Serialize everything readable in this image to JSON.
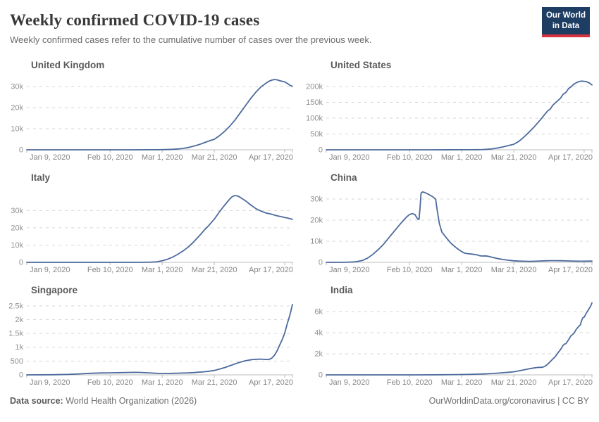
{
  "header": {
    "title": "Weekly confirmed COVID-19 cases",
    "subtitle": "Weekly confirmed cases refer to the cumulative number of cases over the previous week.",
    "logo_line1": "Our World",
    "logo_line2": "in Data"
  },
  "footer": {
    "source_label": "Data source:",
    "source_text": " World Health Organization (2026)",
    "right_text": "OurWorldinData.org/coronavirus | CC BY"
  },
  "colors": {
    "line": "#4c6a9c",
    "gridline": "#d6d6d6",
    "axis": "#bcbcbc",
    "y_label": "#8f8f8f",
    "x_label": "#858585",
    "logo_bg": "#1d3d63",
    "logo_red": "#d7333f"
  },
  "chart_data": {
    "type": "line",
    "title": "Weekly confirmed COVID-19 cases",
    "grid": true,
    "legend_position": "none",
    "x_axis": {
      "domain_days": [
        0,
        102
      ],
      "start_date": "Jan 9, 2020",
      "ticks": [
        {
          "label": "Jan 9, 2020",
          "day": 0
        },
        {
          "label": "Feb 10, 2020",
          "day": 32
        },
        {
          "label": "Mar 1, 2020",
          "day": 52
        },
        {
          "label": "Mar 21, 2020",
          "day": 72
        },
        {
          "label": "Apr 17, 2020",
          "day": 99
        }
      ]
    },
    "charts": [
      {
        "title": "United Kingdom",
        "ymax": 36000,
        "y_ticks": [
          {
            "value": 30000,
            "label": "30k"
          },
          {
            "value": 20000,
            "label": "20k"
          },
          {
            "value": 10000,
            "label": "10k"
          },
          {
            "value": 0,
            "label": "0"
          }
        ],
        "series": [
          [
            0,
            0
          ],
          [
            10,
            0
          ],
          [
            20,
            0
          ],
          [
            30,
            0
          ],
          [
            40,
            8
          ],
          [
            46,
            20
          ],
          [
            50,
            45
          ],
          [
            53,
            90
          ],
          [
            56,
            220
          ],
          [
            58,
            400
          ],
          [
            60,
            650
          ],
          [
            62,
            1050
          ],
          [
            64,
            1700
          ],
          [
            66,
            2400
          ],
          [
            68,
            3300
          ],
          [
            70,
            4200
          ],
          [
            72,
            5000
          ],
          [
            74,
            6700
          ],
          [
            76,
            8800
          ],
          [
            78,
            11300
          ],
          [
            80,
            14200
          ],
          [
            82,
            17600
          ],
          [
            84,
            21000
          ],
          [
            86,
            24400
          ],
          [
            88,
            27400
          ],
          [
            90,
            29900
          ],
          [
            92,
            31700
          ],
          [
            93,
            32500
          ],
          [
            94,
            33000
          ],
          [
            95,
            33300
          ],
          [
            96,
            33200
          ],
          [
            97,
            32800
          ],
          [
            98,
            32500
          ],
          [
            99,
            32200
          ],
          [
            100,
            31500
          ],
          [
            101,
            30600
          ],
          [
            102,
            30100
          ]
        ]
      },
      {
        "title": "United States",
        "ymax": 240000,
        "y_ticks": [
          {
            "value": 200000,
            "label": "200k"
          },
          {
            "value": 150000,
            "label": "150k"
          },
          {
            "value": 100000,
            "label": "100k"
          },
          {
            "value": 50000,
            "label": "50k"
          },
          {
            "value": 0,
            "label": "0"
          }
        ],
        "series": [
          [
            0,
            0
          ],
          [
            15,
            5
          ],
          [
            30,
            30
          ],
          [
            40,
            60
          ],
          [
            50,
            150
          ],
          [
            55,
            250
          ],
          [
            58,
            500
          ],
          [
            60,
            900
          ],
          [
            62,
            1800
          ],
          [
            64,
            3400
          ],
          [
            66,
            6000
          ],
          [
            68,
            9500
          ],
          [
            70,
            13500
          ],
          [
            72,
            17500
          ],
          [
            74,
            27000
          ],
          [
            76,
            41000
          ],
          [
            78,
            57000
          ],
          [
            80,
            74000
          ],
          [
            82,
            93000
          ],
          [
            84,
            113000
          ],
          [
            85,
            123000
          ],
          [
            86,
            129000
          ],
          [
            87,
            141000
          ],
          [
            88,
            149000
          ],
          [
            89,
            156000
          ],
          [
            90,
            164000
          ],
          [
            91,
            176000
          ],
          [
            92,
            181000
          ],
          [
            93,
            193000
          ],
          [
            94,
            199000
          ],
          [
            95,
            207000
          ],
          [
            96,
            212000
          ],
          [
            97,
            215500
          ],
          [
            98,
            217000
          ],
          [
            99,
            216500
          ],
          [
            100,
            215000
          ],
          [
            101,
            211000
          ],
          [
            102,
            205000
          ]
        ]
      },
      {
        "title": "Italy",
        "ymax": 44000,
        "y_ticks": [
          {
            "value": 30000,
            "label": "30k"
          },
          {
            "value": 20000,
            "label": "20k"
          },
          {
            "value": 10000,
            "label": "10k"
          },
          {
            "value": 0,
            "label": "0"
          }
        ],
        "series": [
          [
            0,
            0
          ],
          [
            20,
            0
          ],
          [
            35,
            5
          ],
          [
            42,
            15
          ],
          [
            45,
            40
          ],
          [
            48,
            140
          ],
          [
            50,
            380
          ],
          [
            52,
            900
          ],
          [
            54,
            1800
          ],
          [
            56,
            3000
          ],
          [
            58,
            4700
          ],
          [
            60,
            6600
          ],
          [
            62,
            8900
          ],
          [
            64,
            11700
          ],
          [
            66,
            14900
          ],
          [
            68,
            18400
          ],
          [
            70,
            21500
          ],
          [
            72,
            25000
          ],
          [
            74,
            29300
          ],
          [
            76,
            33200
          ],
          [
            78,
            36800
          ],
          [
            79,
            38200
          ],
          [
            80,
            38700
          ],
          [
            81,
            38400
          ],
          [
            82,
            37600
          ],
          [
            84,
            35600
          ],
          [
            86,
            33200
          ],
          [
            88,
            31100
          ],
          [
            90,
            29600
          ],
          [
            92,
            28500
          ],
          [
            94,
            27900
          ],
          [
            95,
            27400
          ],
          [
            96,
            27000
          ],
          [
            97,
            26700
          ],
          [
            98,
            26400
          ],
          [
            99,
            26000
          ],
          [
            100,
            25700
          ],
          [
            101,
            25300
          ],
          [
            102,
            24900
          ]
        ]
      },
      {
        "title": "China",
        "ymax": 36000,
        "y_ticks": [
          {
            "value": 30000,
            "label": "30k"
          },
          {
            "value": 20000,
            "label": "20k"
          },
          {
            "value": 10000,
            "label": "10k"
          },
          {
            "value": 0,
            "label": "0"
          }
        ],
        "series": [
          [
            0,
            0
          ],
          [
            4,
            10
          ],
          [
            7,
            40
          ],
          [
            9,
            100
          ],
          [
            11,
            250
          ],
          [
            12,
            420
          ],
          [
            14,
            950
          ],
          [
            16,
            2100
          ],
          [
            18,
            3900
          ],
          [
            20,
            6100
          ],
          [
            22,
            8600
          ],
          [
            24,
            11600
          ],
          [
            26,
            14600
          ],
          [
            28,
            17600
          ],
          [
            30,
            20400
          ],
          [
            31,
            21700
          ],
          [
            32,
            22700
          ],
          [
            33,
            23100
          ],
          [
            34,
            22700
          ],
          [
            35,
            20700
          ],
          [
            35.6,
            20300
          ],
          [
            36,
            26000
          ],
          [
            36.4,
            32800
          ],
          [
            37,
            33400
          ],
          [
            38,
            33000
          ],
          [
            39,
            32400
          ],
          [
            40,
            31700
          ],
          [
            41,
            31000
          ],
          [
            42,
            29900
          ],
          [
            42.6,
            24500
          ],
          [
            43.4,
            18500
          ],
          [
            44.4,
            14300
          ],
          [
            46,
            11800
          ],
          [
            47,
            10300
          ],
          [
            48,
            8900
          ],
          [
            50,
            6800
          ],
          [
            52,
            5100
          ],
          [
            53,
            4400
          ],
          [
            54,
            4150
          ],
          [
            56,
            3900
          ],
          [
            58,
            3500
          ],
          [
            59,
            3100
          ],
          [
            60,
            3000
          ],
          [
            61,
            3050
          ],
          [
            62,
            2900
          ],
          [
            64,
            2300
          ],
          [
            66,
            1750
          ],
          [
            68,
            1350
          ],
          [
            70,
            1000
          ],
          [
            72,
            750
          ],
          [
            74,
            600
          ],
          [
            76,
            520
          ],
          [
            78,
            480
          ],
          [
            80,
            520
          ],
          [
            82,
            620
          ],
          [
            84,
            720
          ],
          [
            86,
            790
          ],
          [
            88,
            810
          ],
          [
            90,
            770
          ],
          [
            92,
            700
          ],
          [
            94,
            630
          ],
          [
            96,
            570
          ],
          [
            98,
            540
          ],
          [
            100,
            560
          ],
          [
            102,
            610
          ]
        ]
      },
      {
        "title": "Singapore",
        "ymax": 2750,
        "y_ticks": [
          {
            "value": 2500,
            "label": "2.5k"
          },
          {
            "value": 2000,
            "label": "2k"
          },
          {
            "value": 1500,
            "label": "1.5k"
          },
          {
            "value": 1000,
            "label": "1k"
          },
          {
            "value": 500,
            "label": "500"
          },
          {
            "value": 0,
            "label": "0"
          }
        ],
        "series": [
          [
            0,
            0
          ],
          [
            10,
            5
          ],
          [
            16,
            18
          ],
          [
            20,
            35
          ],
          [
            24,
            55
          ],
          [
            28,
            68
          ],
          [
            32,
            75
          ],
          [
            36,
            82
          ],
          [
            40,
            90
          ],
          [
            42,
            92
          ],
          [
            44,
            86
          ],
          [
            46,
            76
          ],
          [
            48,
            66
          ],
          [
            50,
            56
          ],
          [
            52,
            50
          ],
          [
            54,
            52
          ],
          [
            56,
            56
          ],
          [
            58,
            60
          ],
          [
            60,
            66
          ],
          [
            62,
            72
          ],
          [
            64,
            82
          ],
          [
            66,
            96
          ],
          [
            68,
            112
          ],
          [
            70,
            132
          ],
          [
            72,
            160
          ],
          [
            74,
            210
          ],
          [
            76,
            265
          ],
          [
            78,
            330
          ],
          [
            80,
            400
          ],
          [
            82,
            462
          ],
          [
            84,
            512
          ],
          [
            86,
            548
          ],
          [
            88,
            566
          ],
          [
            90,
            570
          ],
          [
            91,
            562
          ],
          [
            92,
            556
          ],
          [
            93,
            560
          ],
          [
            94,
            600
          ],
          [
            95,
            700
          ],
          [
            96,
            850
          ],
          [
            97,
            1060
          ],
          [
            98,
            1260
          ],
          [
            99,
            1500
          ],
          [
            100,
            1850
          ],
          [
            101,
            2160
          ],
          [
            102,
            2550
          ]
        ]
      },
      {
        "title": "India",
        "ymax": 7200,
        "y_ticks": [
          {
            "value": 6000,
            "label": "6k"
          },
          {
            "value": 4000,
            "label": "4k"
          },
          {
            "value": 2000,
            "label": "2k"
          },
          {
            "value": 0,
            "label": "0"
          }
        ],
        "series": [
          [
            0,
            0
          ],
          [
            20,
            0
          ],
          [
            35,
            3
          ],
          [
            45,
            10
          ],
          [
            50,
            25
          ],
          [
            55,
            45
          ],
          [
            58,
            65
          ],
          [
            60,
            85
          ],
          [
            62,
            105
          ],
          [
            64,
            135
          ],
          [
            66,
            165
          ],
          [
            68,
            205
          ],
          [
            70,
            245
          ],
          [
            72,
            295
          ],
          [
            74,
            385
          ],
          [
            76,
            485
          ],
          [
            78,
            585
          ],
          [
            80,
            665
          ],
          [
            81,
            700
          ],
          [
            82,
            712
          ],
          [
            83,
            722
          ],
          [
            84,
            810
          ],
          [
            85,
            1010
          ],
          [
            86,
            1260
          ],
          [
            87,
            1510
          ],
          [
            88,
            1760
          ],
          [
            89,
            2110
          ],
          [
            90,
            2420
          ],
          [
            91,
            2820
          ],
          [
            91.5,
            2920
          ],
          [
            92,
            2960
          ],
          [
            93,
            3320
          ],
          [
            94,
            3720
          ],
          [
            94.5,
            3820
          ],
          [
            95,
            3920
          ],
          [
            96,
            4320
          ],
          [
            97,
            4620
          ],
          [
            97.5,
            4720
          ],
          [
            98,
            5120
          ],
          [
            98.5,
            5420
          ],
          [
            99,
            5470
          ],
          [
            100,
            5920
          ],
          [
            100.5,
            6120
          ],
          [
            101,
            6320
          ],
          [
            101.5,
            6520
          ],
          [
            102,
            6820
          ]
        ]
      }
    ]
  }
}
